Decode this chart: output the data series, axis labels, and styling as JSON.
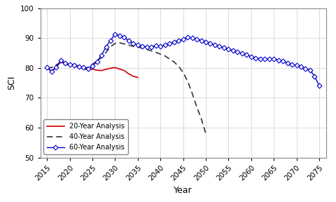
{
  "title": "",
  "xlabel": "Year",
  "ylabel": "SCI",
  "xlim": [
    2013.5,
    2076.5
  ],
  "ylim": [
    50,
    100
  ],
  "xticks": [
    2015,
    2020,
    2025,
    2030,
    2035,
    2040,
    2045,
    2050,
    2055,
    2060,
    2065,
    2070,
    2075
  ],
  "yticks": [
    50,
    60,
    70,
    80,
    90,
    100
  ],
  "line20_x": [
    2015,
    2016,
    2017,
    2018,
    2019,
    2020,
    2021,
    2022,
    2023,
    2024,
    2025,
    2026,
    2027,
    2028,
    2029,
    2030,
    2031,
    2032,
    2033,
    2034,
    2035
  ],
  "line20_y": [
    80.0,
    78.8,
    80.2,
    82.1,
    81.3,
    81.0,
    80.8,
    80.2,
    79.8,
    79.3,
    79.6,
    79.2,
    79.1,
    79.5,
    79.9,
    80.1,
    79.6,
    79.1,
    78.0,
    77.2,
    76.8
  ],
  "line40_x": [
    2015,
    2016,
    2017,
    2018,
    2019,
    2020,
    2021,
    2022,
    2023,
    2024,
    2025,
    2026,
    2027,
    2028,
    2029,
    2030,
    2031,
    2032,
    2033,
    2034,
    2035,
    2036,
    2037,
    2038,
    2039,
    2040,
    2041,
    2042,
    2043,
    2044,
    2045,
    2046,
    2047,
    2048,
    2049,
    2050
  ],
  "line40_y": [
    80.0,
    80.1,
    81.0,
    81.8,
    81.2,
    81.0,
    81.0,
    80.6,
    80.1,
    80.1,
    81.2,
    82.3,
    83.5,
    85.2,
    87.1,
    88.2,
    88.4,
    88.0,
    87.6,
    87.2,
    87.0,
    86.6,
    86.2,
    85.7,
    85.2,
    84.6,
    84.0,
    83.0,
    82.0,
    80.5,
    78.5,
    75.5,
    71.5,
    67.0,
    63.0,
    58.0
  ],
  "line60_x": [
    2015,
    2016,
    2017,
    2018,
    2019,
    2020,
    2021,
    2022,
    2023,
    2024,
    2025,
    2026,
    2027,
    2028,
    2029,
    2030,
    2031,
    2032,
    2033,
    2034,
    2035,
    2036,
    2037,
    2038,
    2039,
    2040,
    2041,
    2042,
    2043,
    2044,
    2045,
    2046,
    2047,
    2048,
    2049,
    2050,
    2051,
    2052,
    2053,
    2054,
    2055,
    2056,
    2057,
    2058,
    2059,
    2060,
    2061,
    2062,
    2063,
    2064,
    2065,
    2066,
    2067,
    2068,
    2069,
    2070,
    2071,
    2072,
    2073,
    2074,
    2075
  ],
  "line60_y": [
    80.2,
    78.8,
    80.1,
    82.5,
    81.5,
    81.2,
    81.0,
    80.5,
    80.1,
    79.6,
    80.6,
    82.1,
    84.2,
    87.1,
    89.2,
    91.3,
    90.8,
    90.2,
    89.1,
    88.2,
    87.6,
    87.2,
    87.1,
    87.0,
    87.5,
    87.2,
    87.6,
    88.1,
    88.6,
    89.1,
    89.6,
    90.2,
    90.1,
    89.6,
    89.2,
    88.7,
    88.2,
    87.7,
    87.2,
    86.8,
    86.3,
    85.8,
    85.3,
    84.8,
    84.3,
    83.8,
    83.3,
    83.1,
    83.0,
    83.0,
    83.0,
    82.6,
    82.2,
    81.7,
    81.2,
    80.8,
    80.3,
    79.8,
    79.3,
    77.2,
    74.1
  ],
  "color20": "#cc0000",
  "color40": "#333333",
  "color60": "#0000cc",
  "legend_labels": [
    "20-Year Analysis",
    "40-Year Analysis",
    "60-Year Analysis"
  ],
  "legend_loc": "lower left",
  "bg_color": "#ffffff"
}
